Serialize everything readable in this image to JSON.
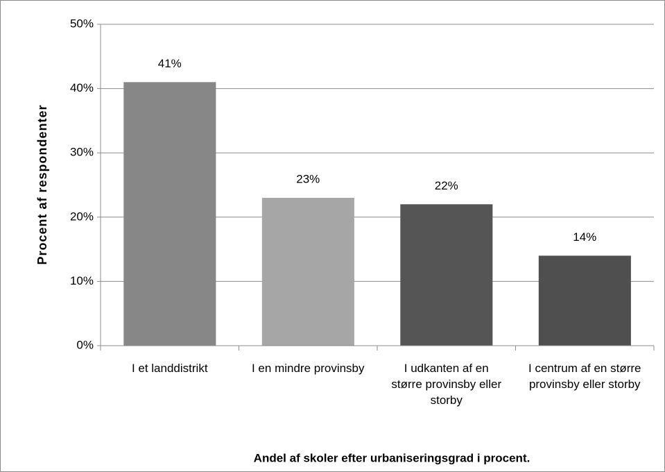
{
  "chart_data": {
    "type": "bar",
    "title": "Andel af skoler efter urbaniseringsgrad i procent.",
    "y_label": "Procent af respondenter",
    "categories": [
      "I et landdistrikt",
      "I en mindre provinsby",
      "I udkanten af en større provinsby eller storby",
      "I centrum af en større provinsby eller storby"
    ],
    "values": [
      41,
      23,
      22,
      14
    ],
    "value_labels": [
      "41%",
      "23%",
      "22%",
      "14%"
    ],
    "colors": [
      "#878787",
      "#a6a6a6",
      "#555555",
      "#4f4f4f"
    ],
    "ylim": [
      0,
      50
    ],
    "yticks": [
      {
        "value": 0,
        "label": "0%"
      },
      {
        "value": 10,
        "label": "10%"
      },
      {
        "value": 20,
        "label": "20%"
      },
      {
        "value": 30,
        "label": "30%"
      },
      {
        "value": 40,
        "label": "40%"
      },
      {
        "value": 50,
        "label": "50%"
      }
    ],
    "grid": true
  }
}
